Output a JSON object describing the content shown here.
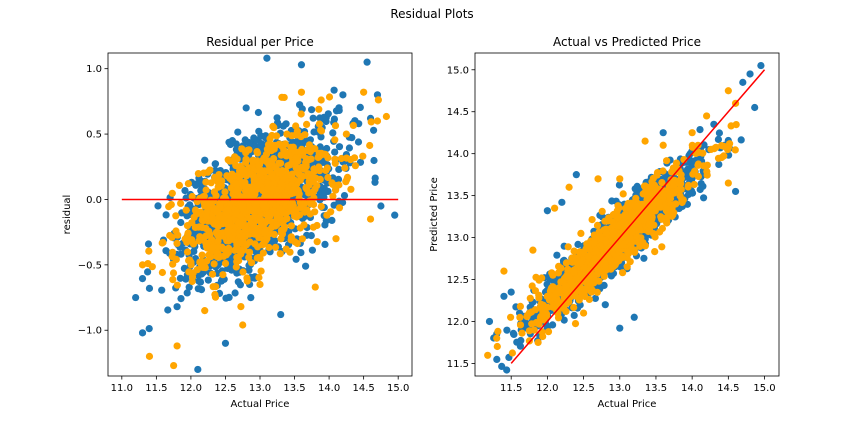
{
  "figure": {
    "suptitle": "Residual Plots"
  },
  "colors": {
    "train": "#1f77b4",
    "test": "#ffa500",
    "line": "#ff0000"
  },
  "chart_data": [
    {
      "type": "scatter",
      "title": "Residual per Price",
      "xlabel": "Actual Price",
      "ylabel": "residual",
      "xlim": [
        10.8,
        15.2
      ],
      "ylim": [
        -1.35,
        1.12
      ],
      "xticks": [
        11.0,
        11.5,
        12.0,
        12.5,
        13.0,
        13.5,
        14.0,
        14.5,
        15.0
      ],
      "xtick_labels": [
        "11.0",
        "11.5",
        "12.0",
        "12.5",
        "13.0",
        "13.5",
        "14.0",
        "14.5",
        "15.0"
      ],
      "yticks": [
        -1.0,
        -0.5,
        0.0,
        0.5,
        1.0
      ],
      "ytick_labels": [
        "−1.0",
        "−0.5",
        "0.0",
        "0.5",
        "1.0"
      ],
      "grid": false,
      "series": [
        {
          "color": "#1f77b4",
          "points": [
            [
              12.2,
              0.3
            ],
            [
              12.6,
              0.45
            ],
            [
              13.1,
              1.08
            ],
            [
              13.6,
              1.03
            ],
            [
              14.55,
              1.05
            ],
            [
              14.2,
              0.8
            ],
            [
              14.7,
              0.8
            ],
            [
              12.1,
              -1.3
            ],
            [
              12.5,
              -1.1
            ],
            [
              11.3,
              -1.02
            ],
            [
              11.8,
              -0.82
            ],
            [
              13.3,
              -0.88
            ],
            [
              14.95,
              -0.12
            ],
            [
              14.75,
              -0.05
            ],
            [
              14.6,
              0.62
            ],
            [
              11.4,
              -0.68
            ],
            [
              12.8,
              0.7
            ],
            [
              13.9,
              0.55
            ],
            [
              11.2,
              -0.75
            ],
            [
              12.9,
              -0.6
            ]
          ]
        },
        {
          "color": "#ffa500",
          "points": [
            [
              11.4,
              -1.2
            ],
            [
              11.75,
              -1.27
            ],
            [
              11.8,
              -1.12
            ],
            [
              12.75,
              -0.96
            ],
            [
              12.2,
              -0.85
            ],
            [
              11.3,
              -0.5
            ],
            [
              13.6,
              0.82
            ],
            [
              13.35,
              0.78
            ],
            [
              14.5,
              0.82
            ],
            [
              14.25,
              0.5
            ],
            [
              13.1,
              -0.3
            ],
            [
              13.8,
              -0.67
            ],
            [
              12.9,
              0.3
            ],
            [
              11.95,
              -0.2
            ],
            [
              14.1,
              -0.3
            ],
            [
              13.0,
              -0.65
            ],
            [
              14.6,
              -0.15
            ],
            [
              12.0,
              -0.48
            ],
            [
              13.2,
              0.55
            ],
            [
              14.7,
              0.6
            ]
          ]
        }
      ],
      "reference_line": {
        "color": "#ff0000",
        "x": [
          11.0,
          15.0
        ],
        "y": [
          0.0,
          0.0
        ]
      }
    },
    {
      "type": "scatter",
      "title": "Actual vs Predicted Price",
      "xlabel": "Actual Price",
      "ylabel": "Predicted Price",
      "xlim": [
        11.0,
        15.2
      ],
      "ylim": [
        11.35,
        15.2
      ],
      "xticks": [
        11.5,
        12.0,
        12.5,
        13.0,
        13.5,
        14.0,
        14.5,
        15.0
      ],
      "xtick_labels": [
        "11.5",
        "12.0",
        "12.5",
        "13.0",
        "13.5",
        "14.0",
        "14.5",
        "15.0"
      ],
      "yticks": [
        11.5,
        12.0,
        12.5,
        13.0,
        13.5,
        14.0,
        14.5,
        15.0
      ],
      "ytick_labels": [
        "11.5",
        "12.0",
        "12.5",
        "13.0",
        "13.5",
        "14.0",
        "14.5",
        "15.0"
      ],
      "grid": false,
      "series": [
        {
          "color": "#1f77b4",
          "points": [
            [
              14.95,
              15.05
            ],
            [
              14.8,
              14.95
            ],
            [
              14.7,
              14.85
            ],
            [
              12.4,
              13.75
            ],
            [
              12.0,
              13.32
            ],
            [
              11.3,
              11.85
            ],
            [
              11.4,
              12.3
            ],
            [
              13.0,
              11.92
            ],
            [
              13.2,
              12.05
            ],
            [
              14.6,
              13.55
            ],
            [
              14.3,
              14.35
            ],
            [
              13.6,
              14.25
            ],
            [
              12.2,
              13.42
            ],
            [
              11.2,
              12.0
            ],
            [
              13.9,
              13.9
            ],
            [
              12.8,
              12.2
            ],
            [
              14.45,
              14.1
            ],
            [
              11.5,
              12.35
            ]
          ]
        },
        {
          "color": "#ffa500",
          "points": [
            [
              11.3,
              11.8
            ],
            [
              11.4,
              12.6
            ],
            [
              11.8,
              12.85
            ],
            [
              11.75,
              12.1
            ],
            [
              12.1,
              13.35
            ],
            [
              12.3,
              13.6
            ],
            [
              12.7,
              13.7
            ],
            [
              13.0,
              13.7
            ],
            [
              13.35,
              14.15
            ],
            [
              14.5,
              14.75
            ],
            [
              14.6,
              14.6
            ],
            [
              14.0,
              14.25
            ],
            [
              14.5,
              13.65
            ],
            [
              14.2,
              14.45
            ],
            [
              12.5,
              12.1
            ],
            [
              13.6,
              14.1
            ]
          ]
        }
      ],
      "reference_line": {
        "color": "#ff0000",
        "x": [
          11.5,
          15.0
        ],
        "y": [
          11.5,
          15.0
        ]
      }
    }
  ]
}
